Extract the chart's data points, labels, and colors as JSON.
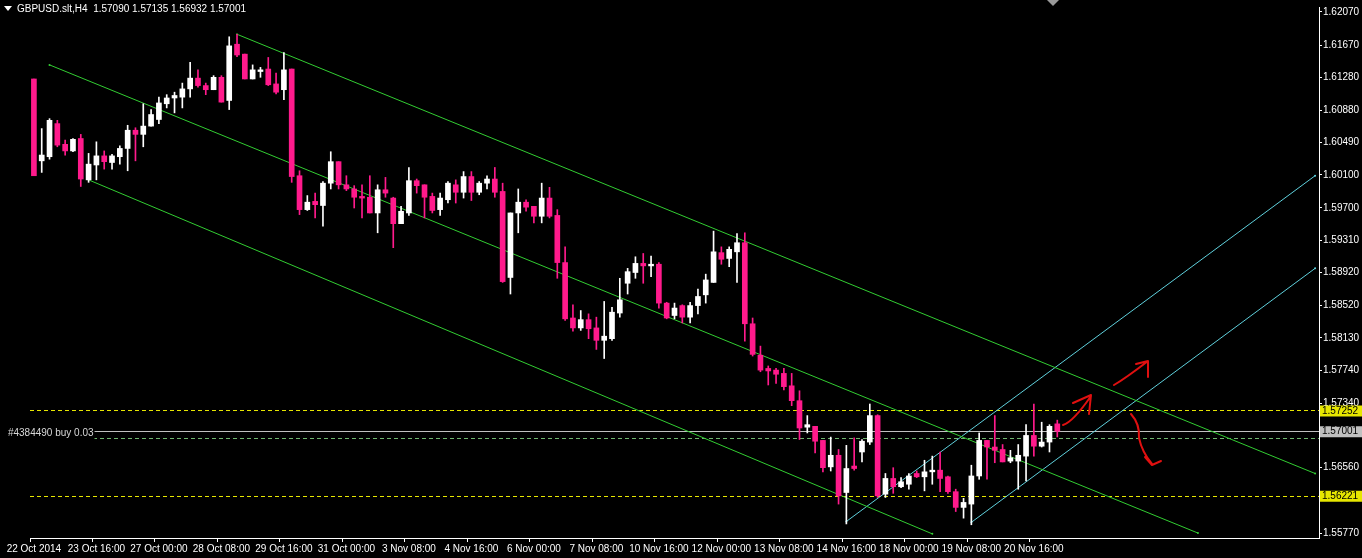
{
  "chart_data": {
    "type": "candlestick",
    "title": "GBPUSD.slt,H4  1.57090 1.57135 1.56932 1.57001",
    "categories": [
      "22 Oct 2014",
      null,
      null,
      null,
      null,
      null,
      null,
      null,
      "23 Oct 16:00",
      null,
      null,
      null,
      null,
      null,
      null,
      null,
      "27 Oct 00:00",
      null,
      null,
      null,
      null,
      null,
      null,
      null,
      "28 Oct 08:00",
      null,
      null,
      null,
      null,
      null,
      null,
      null,
      "29 Oct 16:00",
      null,
      null,
      null,
      null,
      null,
      null,
      null,
      "31 Oct 00:00",
      null,
      null,
      null,
      null,
      null,
      null,
      null,
      "3 Nov 08:00",
      null,
      null,
      null,
      null,
      null,
      null,
      null,
      "4 Nov 16:00",
      null,
      null,
      null,
      null,
      null,
      null,
      null,
      "6 Nov 00:00",
      null,
      null,
      null,
      null,
      null,
      null,
      null,
      "7 Nov 08:00",
      null,
      null,
      null,
      null,
      null,
      null,
      null,
      "10 Nov 16:00",
      null,
      null,
      null,
      null,
      null,
      null,
      null,
      "12 Nov 00:00",
      null,
      null,
      null,
      null,
      null,
      null,
      null,
      "13 Nov 08:00",
      null,
      null,
      null,
      null,
      null,
      null,
      null,
      "14 Nov 16:00",
      null,
      null,
      null,
      null,
      null,
      null,
      null,
      "18 Nov 00:00",
      null,
      null,
      null,
      null,
      null,
      null,
      null,
      "19 Nov 08:00",
      null,
      null,
      null,
      null,
      null,
      null,
      null,
      "20 Nov 16:00",
      null,
      null,
      null,
      null,
      null,
      null,
      null,
      null,
      null,
      null,
      null,
      null,
      null,
      null,
      null,
      null,
      null,
      null,
      null,
      null,
      null,
      null,
      null,
      null,
      null,
      null,
      null,
      null,
      null,
      null,
      null,
      null,
      null,
      null,
      null,
      null
    ],
    "ohlc": [
      [
        1.6126,
        1.6126,
        1.6009,
        1.6009
      ],
      [
        1.6027,
        1.6066,
        1.6013,
        1.6034
      ],
      [
        1.6032,
        1.6078,
        1.6029,
        1.6076
      ],
      [
        1.6072,
        1.6076,
        1.6044,
        1.6046
      ],
      [
        1.6047,
        1.6052,
        1.6034,
        1.6039
      ],
      [
        1.6039,
        1.6054,
        1.6038,
        1.6053
      ],
      [
        1.6054,
        1.6059,
        1.5996,
        1.6005
      ],
      [
        1.6004,
        1.6036,
        1.6001,
        1.6023
      ],
      [
        1.6022,
        1.605,
        1.6004,
        1.6033
      ],
      [
        1.6033,
        1.6039,
        1.6017,
        1.6026
      ],
      [
        1.6025,
        1.6035,
        1.6017,
        1.6033
      ],
      [
        1.6032,
        1.6045,
        1.6023,
        1.6042
      ],
      [
        1.6042,
        1.607,
        1.6015,
        1.6064
      ],
      [
        1.6064,
        1.6067,
        1.6027,
        1.6059
      ],
      [
        1.6059,
        1.6096,
        1.6044,
        1.6069
      ],
      [
        1.6069,
        1.6089,
        1.6069,
        1.6083
      ],
      [
        1.6077,
        1.6104,
        1.6072,
        1.6097
      ],
      [
        1.6096,
        1.6107,
        1.6091,
        1.6103
      ],
      [
        1.6103,
        1.611,
        1.6085,
        1.6106
      ],
      [
        1.6104,
        1.6121,
        1.6091,
        1.6114
      ],
      [
        1.6114,
        1.6146,
        1.6104,
        1.6127
      ],
      [
        1.6127,
        1.6137,
        1.6116,
        1.6118
      ],
      [
        1.6118,
        1.6121,
        1.6107,
        1.6113
      ],
      [
        1.6113,
        1.613,
        1.6113,
        1.6128
      ],
      [
        1.6128,
        1.613,
        1.6098,
        1.6098
      ],
      [
        1.61,
        1.6177,
        1.6089,
        1.6166
      ],
      [
        1.6168,
        1.618,
        1.6153,
        1.6155
      ],
      [
        1.6156,
        1.6156,
        1.6126,
        1.6126
      ],
      [
        1.6126,
        1.6143,
        1.6126,
        1.6137
      ],
      [
        1.6135,
        1.614,
        1.6128,
        1.6137
      ],
      [
        1.6138,
        1.6152,
        1.6118,
        1.6119
      ],
      [
        1.612,
        1.6133,
        1.6108,
        1.611
      ],
      [
        1.6113,
        1.6158,
        1.6101,
        1.6137
      ],
      [
        1.6138,
        1.6138,
        1.6001,
        1.6008
      ],
      [
        1.6009,
        1.6015,
        1.5962,
        1.5968
      ],
      [
        1.5968,
        1.5985,
        1.5967,
        1.5977
      ],
      [
        1.5978,
        1.5988,
        1.5958,
        1.5974
      ],
      [
        1.5973,
        1.6002,
        1.5948,
        1.6
      ],
      [
        1.6,
        1.6038,
        1.5993,
        1.6026
      ],
      [
        1.6026,
        1.6026,
        1.5993,
        1.5998
      ],
      [
        1.5998,
        1.6009,
        1.5991,
        1.5993
      ],
      [
        1.5993,
        1.5997,
        1.597,
        1.5983
      ],
      [
        1.5984,
        1.5998,
        1.5958,
        1.5982
      ],
      [
        1.5983,
        1.6009,
        1.5964,
        1.5964
      ],
      [
        1.5964,
        1.5998,
        1.594,
        1.5992
      ],
      [
        1.5992,
        1.6007,
        1.5983,
        1.5988
      ],
      [
        1.5982,
        1.5983,
        1.5922,
        1.5951
      ],
      [
        1.5951,
        1.5972,
        1.5951,
        1.5966
      ],
      [
        1.5964,
        1.6019,
        1.5961,
        1.6003
      ],
      [
        1.6003,
        1.6005,
        1.5988,
        1.5997
      ],
      [
        1.5998,
        1.5998,
        1.5958,
        1.5983
      ],
      [
        1.5984,
        1.5988,
        1.5964,
        1.5967
      ],
      [
        1.5968,
        1.5988,
        1.5961,
        1.5982
      ],
      [
        1.598,
        1.6002,
        1.5976,
        1.6
      ],
      [
        1.5998,
        1.6004,
        1.5976,
        1.5989
      ],
      [
        1.5989,
        1.6014,
        1.5982,
        1.6008
      ],
      [
        1.6008,
        1.6014,
        1.5979,
        1.5989
      ],
      [
        1.5989,
        1.6002,
        1.5986,
        1.6
      ],
      [
        1.6,
        1.6009,
        1.5993,
        1.6005
      ],
      [
        1.6005,
        1.6019,
        1.5983,
        1.5989
      ],
      [
        1.599,
        1.6,
        1.588,
        1.5881
      ],
      [
        1.5886,
        1.5964,
        1.5866,
        1.5964
      ],
      [
        1.5964,
        1.5993,
        1.594,
        1.5977
      ],
      [
        1.5977,
        1.598,
        1.5966,
        1.5971
      ],
      [
        1.5972,
        1.5972,
        1.5952,
        1.596
      ],
      [
        1.596,
        1.6,
        1.5952,
        1.5982
      ],
      [
        1.5982,
        1.5995,
        1.5958,
        1.596
      ],
      [
        1.5961,
        1.5968,
        1.5885,
        1.5904
      ],
      [
        1.5904,
        1.5923,
        1.5834,
        1.5836
      ],
      [
        1.5837,
        1.5853,
        1.5821,
        1.5825
      ],
      [
        1.5825,
        1.5846,
        1.5822,
        1.5835
      ],
      [
        1.5835,
        1.5842,
        1.5812,
        1.5824
      ],
      [
        1.5825,
        1.5838,
        1.5799,
        1.581
      ],
      [
        1.581,
        1.5857,
        1.5788,
        1.5815
      ],
      [
        1.5812,
        1.585,
        1.581,
        1.5844
      ],
      [
        1.5843,
        1.5885,
        1.5838,
        1.5859
      ],
      [
        1.5879,
        1.5897,
        1.5866,
        1.5893
      ],
      [
        1.5892,
        1.5911,
        1.5885,
        1.5903
      ],
      [
        1.5903,
        1.5915,
        1.5879,
        1.59
      ],
      [
        1.59,
        1.5912,
        1.5887,
        1.5902
      ],
      [
        1.5902,
        1.5904,
        1.5849,
        1.5855
      ],
      [
        1.5855,
        1.5856,
        1.5836,
        1.5837
      ],
      [
        1.584,
        1.5855,
        1.5836,
        1.5849
      ],
      [
        1.5852,
        1.5853,
        1.5831,
        1.5838
      ],
      [
        1.5838,
        1.5856,
        1.5831,
        1.5852
      ],
      [
        1.5852,
        1.5872,
        1.5842,
        1.5863
      ],
      [
        1.5865,
        1.589,
        1.5855,
        1.5883
      ],
      [
        1.588,
        1.5942,
        1.588,
        1.5917
      ],
      [
        1.5916,
        1.5923,
        1.5902,
        1.5908
      ],
      [
        1.5909,
        1.5923,
        1.5899,
        1.592
      ],
      [
        1.5917,
        1.5939,
        1.588,
        1.5928
      ],
      [
        1.5928,
        1.594,
        1.5809,
        1.583
      ],
      [
        1.583,
        1.5837,
        1.5791,
        1.5793
      ],
      [
        1.5792,
        1.5803,
        1.5772,
        1.5774
      ],
      [
        1.5776,
        1.5779,
        1.5756,
        1.5773
      ],
      [
        1.5774,
        1.5776,
        1.5758,
        1.5769
      ],
      [
        1.577,
        1.5776,
        1.575,
        1.5754
      ],
      [
        1.5755,
        1.577,
        1.5731,
        1.5737
      ],
      [
        1.5737,
        1.5749,
        1.569,
        1.5704
      ],
      [
        1.5705,
        1.5719,
        1.5698,
        1.5708
      ],
      [
        1.5706,
        1.5706,
        1.5674,
        1.5688
      ],
      [
        1.5689,
        1.5689,
        1.5651,
        1.5656
      ],
      [
        1.5657,
        1.5693,
        1.5652,
        1.5671
      ],
      [
        1.5671,
        1.5678,
        1.5612,
        1.5622
      ],
      [
        1.5626,
        1.5683,
        1.5588,
        1.5655
      ],
      [
        1.5658,
        1.5692,
        1.5653,
        1.5655
      ],
      [
        1.5675,
        1.569,
        1.5663,
        1.5688
      ],
      [
        1.5687,
        1.5733,
        1.5684,
        1.5719
      ],
      [
        1.5719,
        1.572,
        1.562,
        1.5622
      ],
      [
        1.5624,
        1.5649,
        1.562,
        1.5643
      ],
      [
        1.5643,
        1.5656,
        1.5625,
        1.5633
      ],
      [
        1.5633,
        1.5644,
        1.5632,
        1.5639
      ],
      [
        1.5636,
        1.5649,
        1.563,
        1.5646
      ],
      [
        1.5649,
        1.5652,
        1.5644,
        1.5645
      ],
      [
        1.5645,
        1.5665,
        1.5628,
        1.5651
      ],
      [
        1.5651,
        1.567,
        1.5636,
        1.5653
      ],
      [
        1.5653,
        1.5675,
        1.5627,
        1.5643
      ],
      [
        1.5645,
        1.5646,
        1.5625,
        1.5627
      ],
      [
        1.5627,
        1.563,
        1.5603,
        1.5608
      ],
      [
        1.5608,
        1.5619,
        1.5595,
        1.5614
      ],
      [
        1.5612,
        1.5659,
        1.5587,
        1.5646
      ],
      [
        1.5646,
        1.5698,
        1.5642,
        1.5689
      ],
      [
        1.5689,
        1.5689,
        1.5642,
        1.5681
      ],
      [
        1.5681,
        1.5719,
        1.5662,
        1.5677
      ],
      [
        1.5678,
        1.5684,
        1.5663,
        1.5663
      ],
      [
        1.5664,
        1.5677,
        1.5662,
        1.5668
      ],
      [
        1.5664,
        1.5684,
        1.563,
        1.5671
      ],
      [
        1.567,
        1.5708,
        1.564,
        1.5695
      ],
      [
        1.5695,
        1.5733,
        1.567,
        1.5682
      ],
      [
        1.5682,
        1.5711,
        1.5681,
        1.5687
      ],
      [
        1.5687,
        1.5708,
        1.5675,
        1.5706
      ],
      [
        1.5709,
        1.57135,
        1.56932,
        1.57001
      ],
      null,
      null,
      null,
      null,
      null,
      null,
      null,
      null,
      null,
      null,
      null,
      null,
      null,
      null,
      null,
      null,
      null,
      null,
      null,
      null,
      null,
      null,
      null,
      null,
      null,
      null,
      null,
      null,
      null,
      null,
      null,
      null,
      null
    ],
    "colors": [
      "#ff1a8c",
      "#ffffff",
      "#ffffff",
      "#ff1a8c",
      "#ff1a8c",
      "#ffffff",
      "#ff1a8c",
      "#ffffff",
      "#ffffff",
      "#ff1a8c",
      "#ffffff",
      "#ffffff",
      "#ffffff",
      "#ff1a8c",
      "#ffffff",
      "#ffffff",
      "#ffffff",
      "#ffffff",
      "#ffffff",
      "#ffffff",
      "#ffffff",
      "#ff1a8c",
      "#ff1a8c",
      "#ffffff",
      "#ff1a8c",
      "#ffffff",
      "#ff1a8c",
      "#ff1a8c",
      "#ffffff",
      "#ffffff",
      "#ff1a8c",
      "#ff1a8c",
      "#ffffff",
      "#ff1a8c",
      "#ff1a8c",
      "#ffffff",
      "#ff1a8c",
      "#ffffff",
      "#ffffff",
      "#ff1a8c",
      "#ff1a8c",
      "#ff1a8c",
      "#ff1a8c",
      "#ff1a8c",
      "#ffffff",
      "#ff1a8c",
      "#ff1a8c",
      "#ffffff",
      "#ffffff",
      "#ff1a8c",
      "#ff1a8c",
      "#ff1a8c",
      "#ffffff",
      "#ffffff",
      "#ff1a8c",
      "#ffffff",
      "#ff1a8c",
      "#ffffff",
      "#ffffff",
      "#ff1a8c",
      "#ff1a8c",
      "#ffffff",
      "#ffffff",
      "#ff1a8c",
      "#ff1a8c",
      "#ffffff",
      "#ff1a8c",
      "#ff1a8c",
      "#ff1a8c",
      "#ff1a8c",
      "#ffffff",
      "#ff1a8c",
      "#ff1a8c",
      "#ffffff",
      "#ffffff",
      "#ffffff",
      "#ffffff",
      "#ffffff",
      "#ff1a8c",
      "#ffffff",
      "#ff1a8c",
      "#ff1a8c",
      "#ffffff",
      "#ff1a8c",
      "#ffffff",
      "#ffffff",
      "#ffffff",
      "#ffffff",
      "#ff1a8c",
      "#ffffff",
      "#ffffff",
      "#ff1a8c",
      "#ff1a8c",
      "#ff1a8c",
      "#ff1a8c",
      "#ff1a8c",
      "#ff1a8c",
      "#ff1a8c",
      "#ff1a8c",
      "#ffffff",
      "#ff1a8c",
      "#ff1a8c",
      "#ffffff",
      "#ff1a8c",
      "#ffffff",
      "#ff1a8c",
      "#ffffff",
      "#ffffff",
      "#ff1a8c",
      "#ffffff",
      "#ff1a8c",
      "#ffffff",
      "#ffffff",
      "#ff1a8c",
      "#ffffff",
      "#ffffff",
      "#ff1a8c",
      "#ff1a8c",
      "#ff1a8c",
      "#ffffff",
      "#ffffff",
      "#ffffff",
      "#ff1a8c",
      "#ff1a8c",
      "#ff1a8c",
      "#ffffff",
      "#ffffff",
      "#ffffff",
      "#ff1a8c",
      "#ffffff",
      "#ffffff",
      "#ff1a8c",
      null,
      null,
      null,
      null,
      null,
      null,
      null,
      null,
      null,
      null,
      null,
      null,
      null,
      null,
      null,
      null,
      null,
      null,
      null,
      null,
      null,
      null,
      null,
      null,
      null,
      null,
      null,
      null,
      null,
      null,
      null,
      null,
      null
    ],
    "series": [
      {
        "type": "line",
        "color": "#32cd32",
        "values": [
          null,
          null,
          null,
          null,
          null,
          null,
          null,
          null,
          null,
          null,
          null,
          null,
          null,
          null,
          null,
          null,
          null,
          null,
          null,
          null,
          null,
          null,
          null,
          null,
          null,
          null,
          1.618,
          null,
          null,
          null,
          null,
          null,
          null,
          null,
          null,
          null,
          null,
          null,
          null,
          null,
          null,
          null,
          null,
          null,
          null,
          null,
          null,
          null,
          null,
          null,
          null,
          null,
          null,
          null,
          null,
          null,
          null,
          null,
          null,
          null,
          null,
          null,
          null,
          null,
          null,
          null,
          null,
          null,
          null,
          null,
          null,
          null,
          null,
          null,
          null,
          null,
          null,
          null,
          null,
          null,
          null,
          null,
          null,
          null,
          null,
          null,
          null,
          null,
          null,
          null,
          null,
          null,
          null,
          null,
          null,
          null,
          null,
          null,
          null,
          null,
          null,
          null,
          null,
          null,
          null,
          null,
          null,
          null,
          null,
          null,
          null,
          null,
          null,
          null,
          null,
          null,
          null,
          null,
          null,
          null,
          null,
          null,
          null,
          null,
          null,
          null,
          null,
          null,
          null,
          null,
          null,
          null,
          null,
          null,
          null,
          null,
          null,
          null,
          null,
          null,
          null,
          null,
          null,
          null,
          null,
          null,
          null,
          null,
          null,
          null,
          null,
          null,
          null,
          null,
          null,
          null,
          null,
          null,
          null,
          null,
          null,
          null,
          null,
          null,
          1.5649
        ]
      },
      {
        "type": "line",
        "color": "#32cd32",
        "values": [
          null,
          null,
          1.6143,
          null,
          null,
          null,
          null,
          null,
          null,
          null,
          null,
          null,
          null,
          null,
          null,
          null,
          null,
          null,
          null,
          null,
          null,
          null,
          null,
          null,
          null,
          null,
          null,
          null,
          null,
          null,
          null,
          null,
          null,
          null,
          null,
          null,
          null,
          null,
          null,
          null,
          null,
          null,
          null,
          null,
          null,
          null,
          null,
          null,
          null,
          null,
          null,
          null,
          null,
          null,
          null,
          null,
          null,
          null,
          null,
          null,
          null,
          null,
          null,
          null,
          null,
          null,
          null,
          null,
          null,
          null,
          null,
          null,
          null,
          null,
          null,
          null,
          null,
          null,
          null,
          null,
          null,
          null,
          null,
          null,
          null,
          null,
          null,
          null,
          null,
          null,
          null,
          null,
          null,
          null,
          null,
          null,
          null,
          null,
          null,
          null,
          null,
          null,
          null,
          null,
          null,
          null,
          null,
          null,
          null,
          null,
          null,
          null,
          null,
          null,
          null,
          null,
          null,
          null,
          null,
          null,
          null,
          null,
          null,
          null,
          null,
          null,
          null,
          null,
          null,
          null,
          null,
          null,
          null,
          null,
          null,
          null,
          null,
          null,
          null,
          null,
          null,
          null,
          null,
          null,
          null,
          null,
          null,
          null,
          null,
          1.5577,
          null,
          null,
          null,
          null,
          null,
          null,
          null,
          null,
          null,
          null,
          null,
          null,
          null,
          null,
          null
        ]
      },
      {
        "type": "line",
        "color": "#32cd32",
        "values": [
          null,
          null,
          null,
          null,
          null,
          null,
          null,
          1.6004,
          null,
          null,
          null,
          null,
          null,
          null,
          null,
          null,
          null,
          null,
          null,
          null,
          null,
          null,
          null,
          null,
          null,
          null,
          null,
          null,
          null,
          null,
          null,
          null,
          null,
          null,
          null,
          null,
          null,
          null,
          null,
          null,
          null,
          null,
          null,
          null,
          null,
          null,
          null,
          null,
          null,
          null,
          null,
          null,
          null,
          null,
          null,
          null,
          null,
          null,
          null,
          null,
          null,
          null,
          null,
          null,
          null,
          null,
          null,
          null,
          null,
          null,
          null,
          null,
          null,
          null,
          null,
          null,
          null,
          null,
          null,
          null,
          null,
          null,
          null,
          null,
          null,
          null,
          null,
          null,
          null,
          null,
          null,
          null,
          null,
          null,
          null,
          null,
          null,
          null,
          null,
          null,
          null,
          null,
          null,
          null,
          null,
          null,
          null,
          null,
          null,
          null,
          null,
          null,
          null,
          null,
          null,
          1.5576,
          null,
          null,
          null,
          null,
          null,
          null,
          null,
          null,
          null,
          null,
          null,
          null,
          null,
          null,
          null,
          null,
          null,
          null,
          null,
          null,
          null,
          null,
          null,
          null,
          null,
          null,
          null,
          null,
          null,
          null,
          null,
          null,
          null,
          null,
          null,
          null,
          null,
          null,
          null,
          null,
          null,
          null,
          null,
          null,
          null,
          null,
          null,
          null,
          null
        ]
      },
      {
        "type": "line",
        "color": "#5fd0dc",
        "values": [
          null,
          null,
          null,
          null,
          null,
          null,
          null,
          null,
          null,
          null,
          null,
          null,
          null,
          null,
          null,
          null,
          null,
          null,
          null,
          null,
          null,
          null,
          null,
          null,
          null,
          null,
          null,
          null,
          null,
          null,
          null,
          null,
          null,
          null,
          null,
          null,
          null,
          null,
          null,
          null,
          null,
          null,
          null,
          null,
          null,
          null,
          null,
          null,
          null,
          null,
          null,
          null,
          null,
          null,
          null,
          null,
          null,
          null,
          null,
          null,
          null,
          null,
          null,
          null,
          null,
          null,
          null,
          null,
          null,
          null,
          null,
          null,
          null,
          null,
          null,
          null,
          null,
          null,
          null,
          null,
          null,
          null,
          null,
          null,
          null,
          null,
          null,
          null,
          null,
          null,
          null,
          null,
          null,
          null,
          null,
          null,
          null,
          null,
          null,
          null,
          null,
          null,
          null,
          null,
          1.5591,
          null,
          null,
          null,
          null,
          null,
          null,
          null,
          null,
          null,
          null,
          null,
          null,
          null,
          null,
          null,
          null,
          null,
          null,
          null,
          null,
          null,
          null,
          null,
          null,
          null,
          null,
          null,
          null,
          null,
          null,
          null,
          null,
          null,
          null,
          null,
          null,
          null,
          null,
          null,
          null,
          null,
          null,
          null,
          null,
          null,
          null,
          null,
          null,
          null,
          null,
          null,
          null,
          null,
          null,
          null,
          null,
          null,
          null,
          null,
          1.6009
        ]
      },
      {
        "type": "line",
        "color": "#5fd0dc",
        "values": [
          null,
          null,
          null,
          null,
          null,
          null,
          null,
          null,
          null,
          null,
          null,
          null,
          null,
          null,
          null,
          null,
          null,
          null,
          null,
          null,
          null,
          null,
          null,
          null,
          null,
          null,
          null,
          null,
          null,
          null,
          null,
          null,
          null,
          null,
          null,
          null,
          null,
          null,
          null,
          null,
          null,
          null,
          null,
          null,
          null,
          null,
          null,
          null,
          null,
          null,
          null,
          null,
          null,
          null,
          null,
          null,
          null,
          null,
          null,
          null,
          null,
          null,
          null,
          null,
          null,
          null,
          null,
          null,
          null,
          null,
          null,
          null,
          null,
          null,
          null,
          null,
          null,
          null,
          null,
          null,
          null,
          null,
          null,
          null,
          null,
          null,
          null,
          null,
          null,
          null,
          null,
          null,
          null,
          null,
          null,
          null,
          null,
          null,
          null,
          null,
          null,
          null,
          null,
          null,
          null,
          null,
          null,
          null,
          null,
          null,
          null,
          null,
          null,
          null,
          null,
          null,
          null,
          null,
          null,
          null,
          1.559,
          null,
          null,
          null,
          null,
          null,
          null,
          null,
          null,
          null,
          null,
          null,
          null,
          null,
          null,
          null,
          null,
          null,
          null,
          null,
          null,
          null,
          null,
          null,
          null,
          null,
          null,
          null,
          null,
          null,
          null,
          null,
          null,
          null,
          null,
          null,
          null,
          null,
          null,
          null,
          null,
          null,
          null,
          null,
          1.5897
        ]
      }
    ],
    "ylim": [
      1.5571,
      1.6213
    ],
    "yticks": [
      {
        "value": 1.6207,
        "label": "1.62070"
      },
      {
        "value": 1.6167,
        "label": "1.61670"
      },
      {
        "value": 1.6128,
        "label": "1.61280"
      },
      {
        "value": 1.6088,
        "label": "1.60880"
      },
      {
        "value": 1.6049,
        "label": "1.60490"
      },
      {
        "value": 1.601,
        "label": "1.60100"
      },
      {
        "value": 1.597,
        "label": "1.59700"
      },
      {
        "value": 1.5931,
        "label": "1.59310"
      },
      {
        "value": 1.5892,
        "label": "1.58920"
      },
      {
        "value": 1.5852,
        "label": "1.58520"
      },
      {
        "value": 1.5813,
        "label": "1.58130"
      },
      {
        "value": 1.5774,
        "label": "1.57740"
      },
      {
        "value": 1.5734,
        "label": "1.57340"
      },
      {
        "value": 1.5656,
        "label": "1.56560"
      },
      {
        "value": 1.5577,
        "label": "1.55770"
      }
    ],
    "ref_lines": [
      {
        "axis": "y",
        "value": 1.57252,
        "label": "1.57252",
        "color": "#e6e600",
        "line_style": "dashed"
      },
      {
        "axis": "y",
        "value": 1.56221,
        "label": "1.56221",
        "color": "#e6e600",
        "line_style": "dashed"
      },
      {
        "axis": "y",
        "value": 1.57001,
        "label": "1.57001",
        "color": "#c0c0c0",
        "line_style": "solid"
      },
      {
        "axis": "y",
        "value": 1.5692,
        "color": "#6fb56f",
        "line_style": "dashed"
      }
    ],
    "annotations": [
      {
        "text": "#4384490 buy 0.03",
        "x": "22 Oct 2014",
        "y": 1.5698
      }
    ]
  }
}
